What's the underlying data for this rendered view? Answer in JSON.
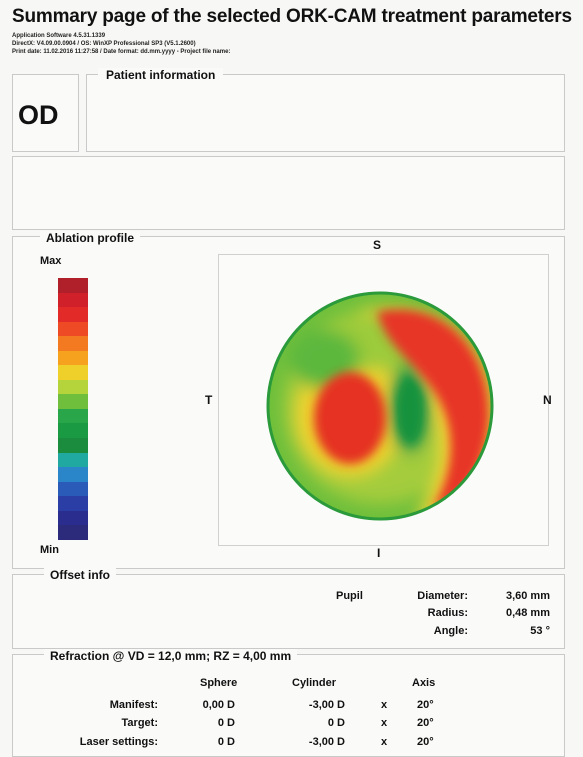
{
  "header": {
    "title": "Summary page of the selected ORK-CAM treatment parameters",
    "meta_line1": "Application Software 4.5.31.1339",
    "meta_line2": "DirectX: V4.09.00.0904 / OS: WinXP Professional SP3 (V5.1.2600)",
    "meta_line3": "Print date: 11.02.2016 11:27:58 / Date format: dd.mm.yyyy  -  Project file name:"
  },
  "eye": "OD",
  "patient": {
    "title": "Patient information"
  },
  "ablation": {
    "title": "Ablation profile",
    "scale_max": "Max",
    "scale_min": "Min",
    "scale_colors": [
      "#b0202a",
      "#d0212a",
      "#e22a28",
      "#ee4a26",
      "#f47a22",
      "#f6a21e",
      "#efd02a",
      "#b5d33a",
      "#6fbf3c",
      "#2aa64a",
      "#1b9a44",
      "#1b8c3e",
      "#1fa9a0",
      "#2a86c8",
      "#2a5bb8",
      "#2b3ea6",
      "#2a2d8e",
      "#2c2a7a"
    ],
    "dir_superior": "S",
    "dir_nasal": "N",
    "dir_temporal": "T",
    "dir_inferior": "I"
  },
  "offset": {
    "title": "Offset info",
    "pupil_label": "Pupil",
    "rows": [
      {
        "label": "Diameter:",
        "value": "3,60 mm"
      },
      {
        "label": "Radius:",
        "value": "0,48 mm"
      },
      {
        "label": "Angle:",
        "value": "53 °"
      }
    ]
  },
  "refraction": {
    "title": "Refraction @ VD = 12,0 mm; RZ = 4,00 mm",
    "headers": {
      "sphere": "Sphere",
      "cylinder": "Cylinder",
      "axis": "Axis"
    },
    "rows": [
      {
        "label": "Manifest:",
        "sphere": "0,00 D",
        "cylinder": "-3,00 D",
        "x": "x",
        "axis": "20°"
      },
      {
        "label": "Target:",
        "sphere": "0 D",
        "cylinder": "0 D",
        "x": "x",
        "axis": "20°"
      },
      {
        "label": "Laser settings:",
        "sphere": "0 D",
        "cylinder": "-3,00 D",
        "x": "x",
        "axis": "20°"
      }
    ]
  }
}
